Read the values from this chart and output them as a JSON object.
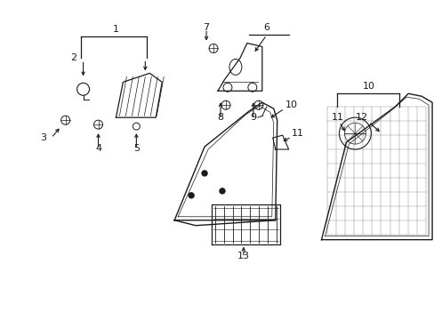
{
  "bg_color": "#ffffff",
  "line_color": "#1a1a1a",
  "text_color": "#1a1a1a",
  "fig_width": 4.89,
  "fig_height": 3.6,
  "dpi": 100
}
